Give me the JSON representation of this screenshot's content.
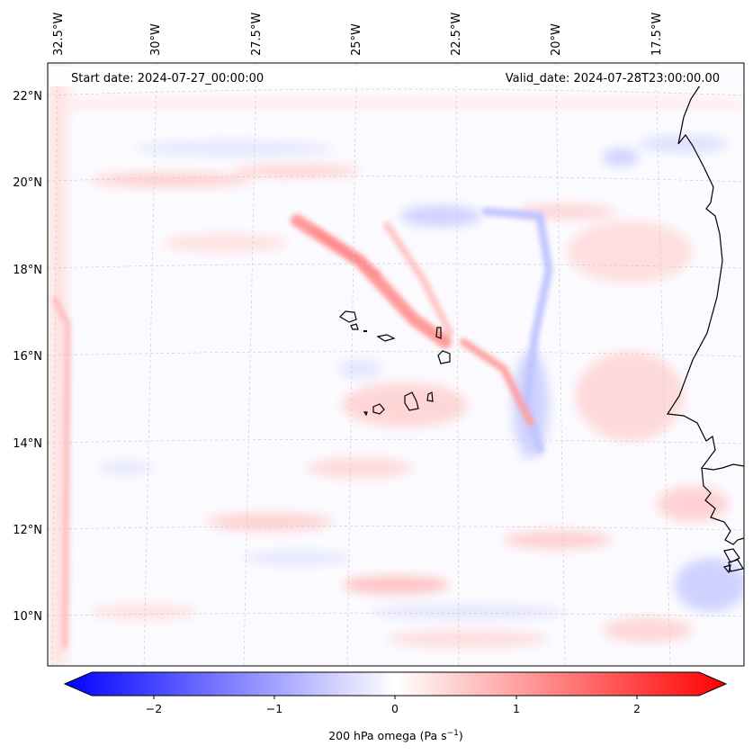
{
  "map": {
    "start_date": "Start date: 2024-07-27_00:00:00",
    "valid_date": "Valid_date: 2024-07-28T23:00:00.00",
    "lon_labels": [
      "32.5°W",
      "30°W",
      "27.5°W",
      "25°W",
      "22.5°W",
      "20°W",
      "17.5°W"
    ],
    "lat_labels": [
      "22°N",
      "20°N",
      "18°N",
      "16°N",
      "14°N",
      "12°N",
      "10°N"
    ],
    "colormap": "bwr",
    "colors": {
      "negative": "#0000ff",
      "zero": "#ffffff",
      "positive": "#ff0000",
      "coast": "#000000",
      "grid": "#c8c8c8"
    }
  },
  "colorbar": {
    "ticks": [
      "−2",
      "−1",
      "0",
      "1",
      "2"
    ],
    "label": "200 hPa omega (Pa s",
    "label_exp": "−1",
    "label_end": ")",
    "range": [
      -2.6,
      2.6
    ]
  }
}
